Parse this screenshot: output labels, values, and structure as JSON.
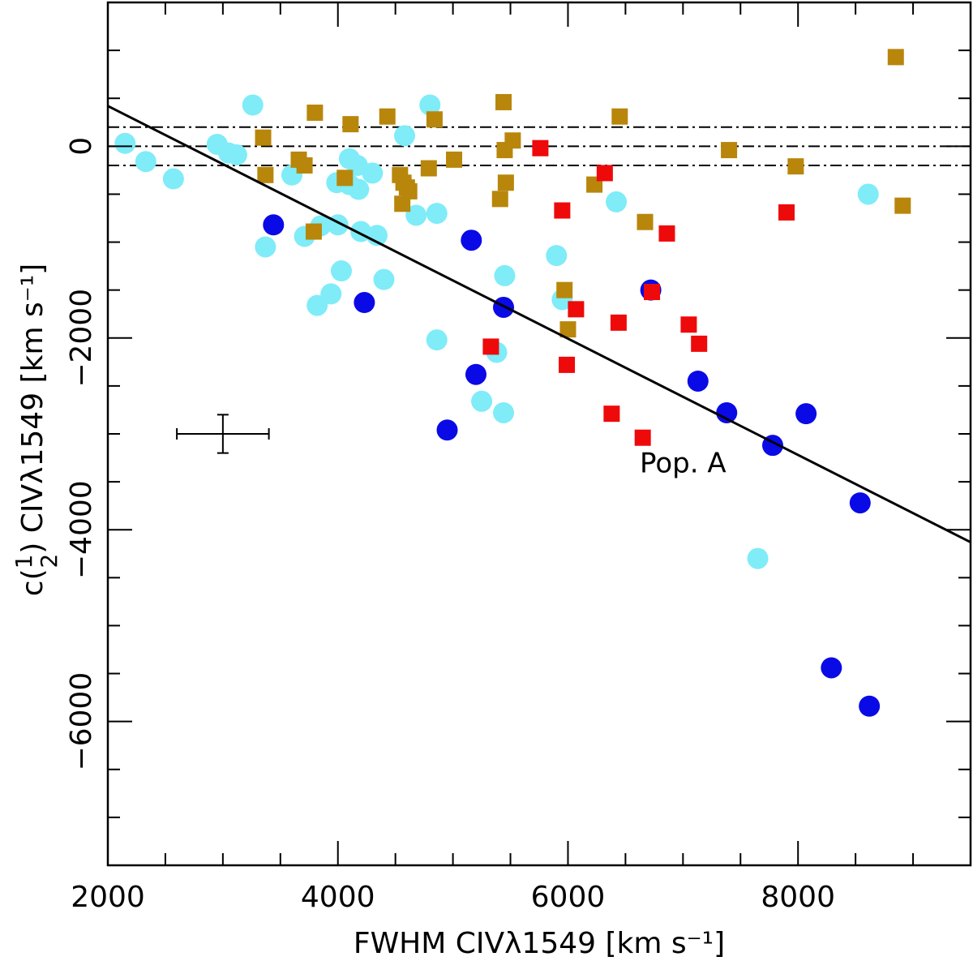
{
  "chart_data": {
    "type": "scatter",
    "xlabel": "FWHM CIVλ1549 [km s⁻¹]",
    "ylabel_prefix": "c(",
    "ylabel_frac_num": "1",
    "ylabel_frac_den": "2",
    "ylabel_suffix": ") CIVλ1549 [km s⁻¹]",
    "xlim": [
      2000,
      9500
    ],
    "ylim": [
      -7500,
      1500
    ],
    "x_ticks": [
      2000,
      4000,
      6000,
      8000
    ],
    "x_tick_labels": [
      "2000",
      "4000",
      "6000",
      "8000"
    ],
    "y_ticks": [
      0,
      -2000,
      -4000,
      -6000
    ],
    "y_tick_labels": [
      "0",
      "−2000",
      "−4000",
      "−6000"
    ],
    "annotation": "Pop. A",
    "annotation_at": [
      7000,
      -3400
    ],
    "fit_line": {
      "x": [
        2000,
        9500
      ],
      "y": [
        420,
        -4130
      ]
    },
    "ref_lines": [
      200,
      0,
      -200
    ],
    "error_bar": {
      "x": 3000,
      "y": -3000,
      "xerr": 400,
      "yerr": 200
    },
    "colors": {
      "cyan": "#7fecf8",
      "blue": "#0a0ae6",
      "gold": "#b8860b",
      "red": "#ee0a0a"
    },
    "series": [
      {
        "name": "cyan-circles",
        "marker": "circle",
        "color": "#7fecf8",
        "points": [
          [
            2150,
            30
          ],
          [
            2330,
            -160
          ],
          [
            2570,
            -340
          ],
          [
            2950,
            20
          ],
          [
            3050,
            -70
          ],
          [
            3120,
            -90
          ],
          [
            3260,
            430
          ],
          [
            3600,
            -300
          ],
          [
            3370,
            -1050
          ],
          [
            3710,
            -940
          ],
          [
            3850,
            -830
          ],
          [
            3940,
            -1540
          ],
          [
            3820,
            -1660
          ],
          [
            3990,
            -380
          ],
          [
            4000,
            -820
          ],
          [
            4030,
            -1300
          ],
          [
            4100,
            -400
          ],
          [
            4100,
            -130
          ],
          [
            4170,
            -200
          ],
          [
            4180,
            -450
          ],
          [
            4200,
            -890
          ],
          [
            4300,
            -280
          ],
          [
            4340,
            -930
          ],
          [
            4400,
            -1390
          ],
          [
            4580,
            110
          ],
          [
            4680,
            -720
          ],
          [
            4800,
            430
          ],
          [
            4860,
            -700
          ],
          [
            4860,
            -2020
          ],
          [
            5250,
            -2660
          ],
          [
            5380,
            -2150
          ],
          [
            5440,
            -2780
          ],
          [
            5450,
            -1350
          ],
          [
            5900,
            -1140
          ],
          [
            5950,
            -1600
          ],
          [
            6420,
            -580
          ],
          [
            7650,
            -4300
          ],
          [
            8610,
            -500
          ]
        ]
      },
      {
        "name": "blue-circles",
        "marker": "circle",
        "color": "#0a0ae6",
        "points": [
          [
            3440,
            -820
          ],
          [
            4230,
            -1630
          ],
          [
            4950,
            -2960
          ],
          [
            5160,
            -980
          ],
          [
            5200,
            -2380
          ],
          [
            5440,
            -1680
          ],
          [
            6720,
            -1500
          ],
          [
            7130,
            -2450
          ],
          [
            7380,
            -2780
          ],
          [
            7780,
            -3120
          ],
          [
            8070,
            -2790
          ],
          [
            8540,
            -3720
          ],
          [
            8290,
            -5440
          ],
          [
            8620,
            -5840
          ]
        ]
      },
      {
        "name": "gold-squares",
        "marker": "square",
        "color": "#b8860b",
        "points": [
          [
            3350,
            90
          ],
          [
            3370,
            -300
          ],
          [
            3660,
            -140
          ],
          [
            3710,
            -200
          ],
          [
            3790,
            -890
          ],
          [
            3800,
            350
          ],
          [
            4060,
            -330
          ],
          [
            4110,
            230
          ],
          [
            4430,
            310
          ],
          [
            4540,
            -300
          ],
          [
            4560,
            -600
          ],
          [
            4570,
            -380
          ],
          [
            4600,
            -430
          ],
          [
            4620,
            -470
          ],
          [
            4790,
            -230
          ],
          [
            4840,
            280
          ],
          [
            5010,
            -140
          ],
          [
            5410,
            -550
          ],
          [
            5440,
            460
          ],
          [
            5450,
            -40
          ],
          [
            5460,
            -380
          ],
          [
            5520,
            60
          ],
          [
            5970,
            -1500
          ],
          [
            6000,
            -1910
          ],
          [
            6230,
            -400
          ],
          [
            6450,
            310
          ],
          [
            6670,
            -790
          ],
          [
            7400,
            -40
          ],
          [
            7980,
            -210
          ],
          [
            8850,
            930
          ],
          [
            8910,
            -620
          ]
        ]
      },
      {
        "name": "red-squares",
        "marker": "square",
        "color": "#ee0a0a",
        "points": [
          [
            5330,
            -2090
          ],
          [
            5760,
            -20
          ],
          [
            5950,
            -670
          ],
          [
            5990,
            -2280
          ],
          [
            6070,
            -1700
          ],
          [
            6320,
            -280
          ],
          [
            6380,
            -2790
          ],
          [
            6440,
            -1840
          ],
          [
            6650,
            -3040
          ],
          [
            6730,
            -1520
          ],
          [
            6860,
            -910
          ],
          [
            7050,
            -1860
          ],
          [
            7140,
            -2060
          ],
          [
            7900,
            -690
          ]
        ]
      }
    ]
  }
}
